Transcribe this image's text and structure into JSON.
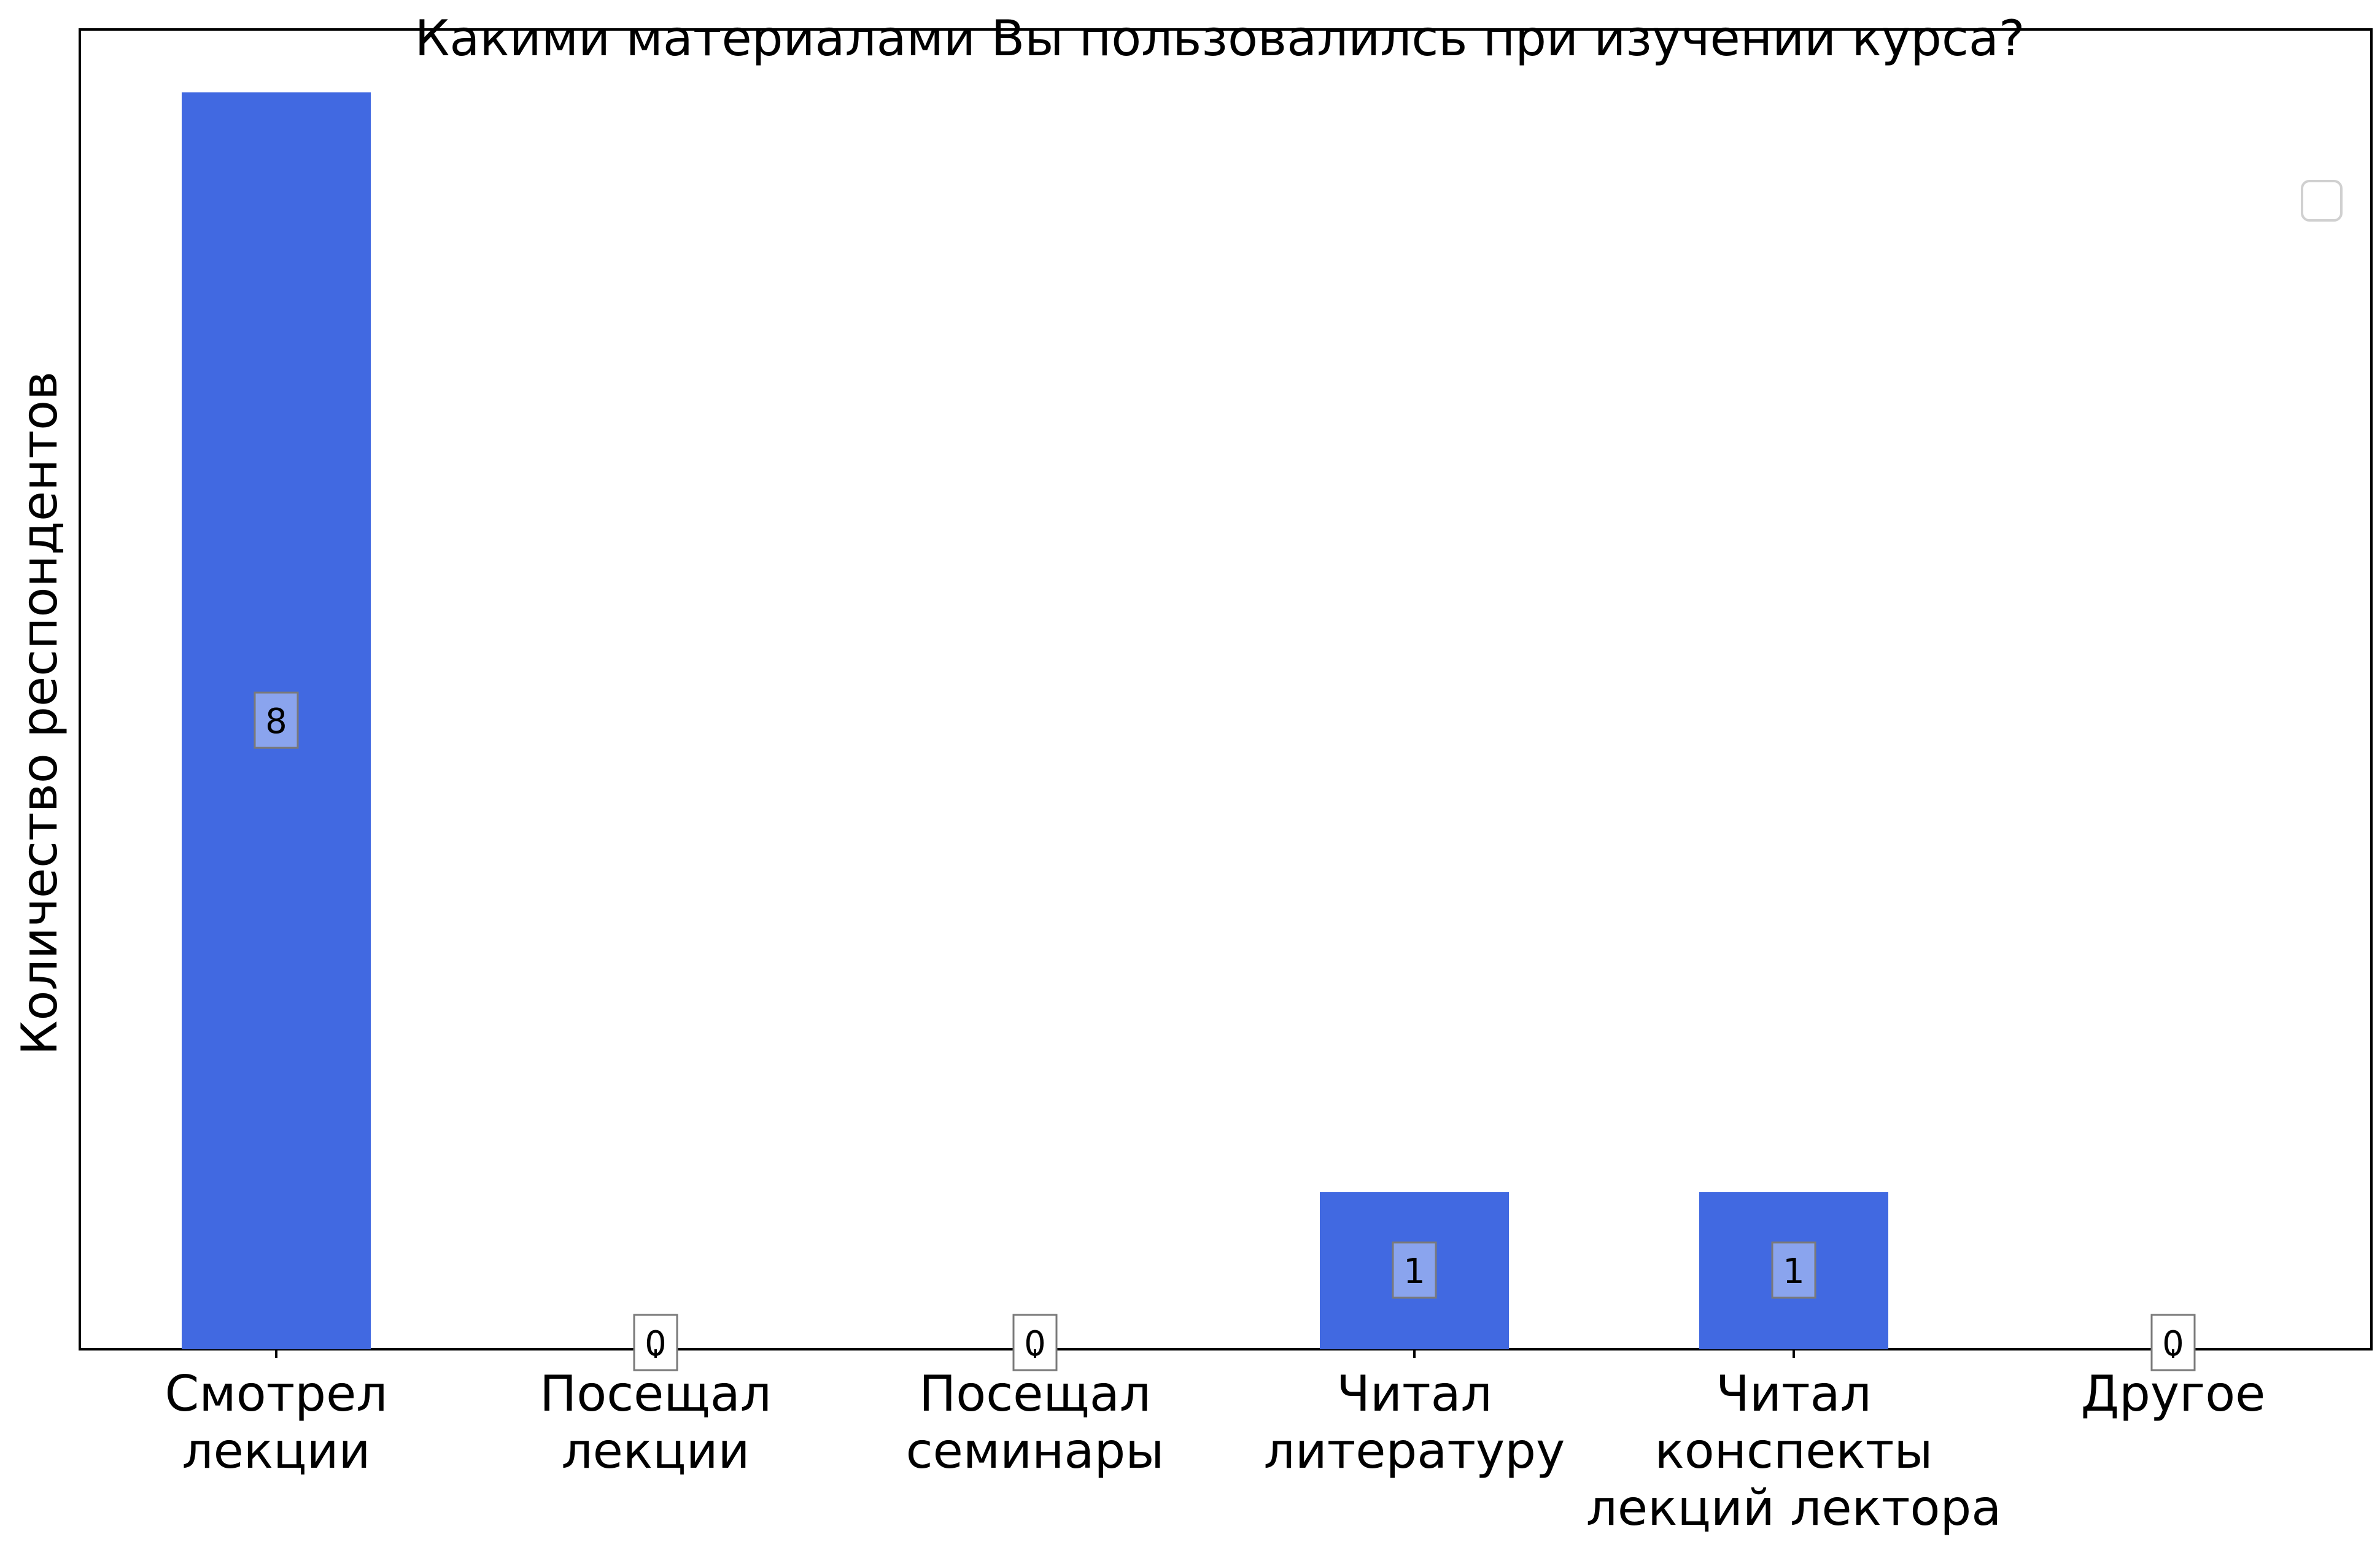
{
  "chart_data": {
    "type": "bar",
    "title": "Какими материалами Вы пользовалилсь при изучении курса?",
    "xlabel": "",
    "ylabel": "Количество респондентов",
    "categories": [
      [
        "Смотрел",
        "лекции"
      ],
      [
        "Посещал",
        "лекции"
      ],
      [
        "Посещал",
        "семинары"
      ],
      [
        "Читал",
        "литературу"
      ],
      [
        "Читал",
        "конспекты",
        "лекций лектора"
      ],
      [
        "Другое"
      ]
    ],
    "values": [
      8,
      0,
      0,
      1,
      1,
      0
    ],
    "ylim": [
      0,
      8.4
    ],
    "bar_color": "#4169e1",
    "label_box_color": "#8aa4ee",
    "grid": false,
    "legend": "top-right, empty"
  }
}
